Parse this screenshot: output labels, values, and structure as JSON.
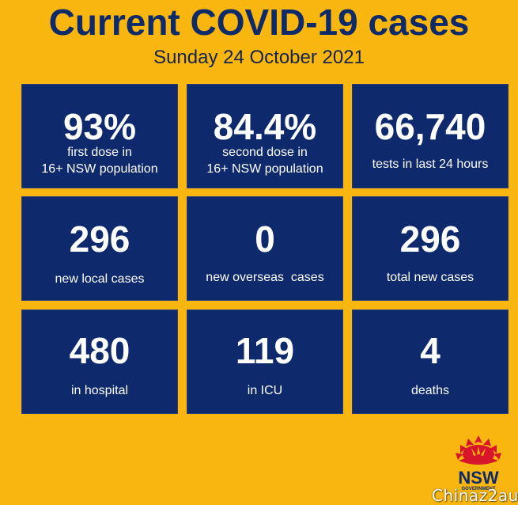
{
  "header": {
    "title": "Current COVID-19 cases",
    "date": "Sunday 24 October 2021"
  },
  "tiles": [
    {
      "value": "93%",
      "label_line1": "first dose in",
      "label_line2": "16+ NSW population"
    },
    {
      "value": "84.4%",
      "label_line1": "second dose in",
      "label_line2": "16+ NSW population"
    },
    {
      "value": "66,740",
      "label_line1": "tests in last 24 hours",
      "label_line2": ""
    },
    {
      "value": "296",
      "label_line1": "new local cases",
      "label_line2": ""
    },
    {
      "value": "0",
      "label_line1": "new overseas  cases",
      "label_line2": ""
    },
    {
      "value": "296",
      "label_line1": "total new cases",
      "label_line2": ""
    },
    {
      "value": "480",
      "label_line1": "in hospital",
      "label_line2": ""
    },
    {
      "value": "119",
      "label_line1": "in ICU",
      "label_line2": ""
    },
    {
      "value": "4",
      "label_line1": "deaths",
      "label_line2": ""
    }
  ],
  "logo": {
    "wordmark": "NSW",
    "subtext": "GOVERNMENT",
    "icon": "waratah-flower-icon"
  },
  "watermark": "Chinaz2au",
  "colors": {
    "background": "#f9b60f",
    "tile": "#0e2a6c",
    "title": "#0f2a68",
    "logo_red": "#d7152b"
  }
}
